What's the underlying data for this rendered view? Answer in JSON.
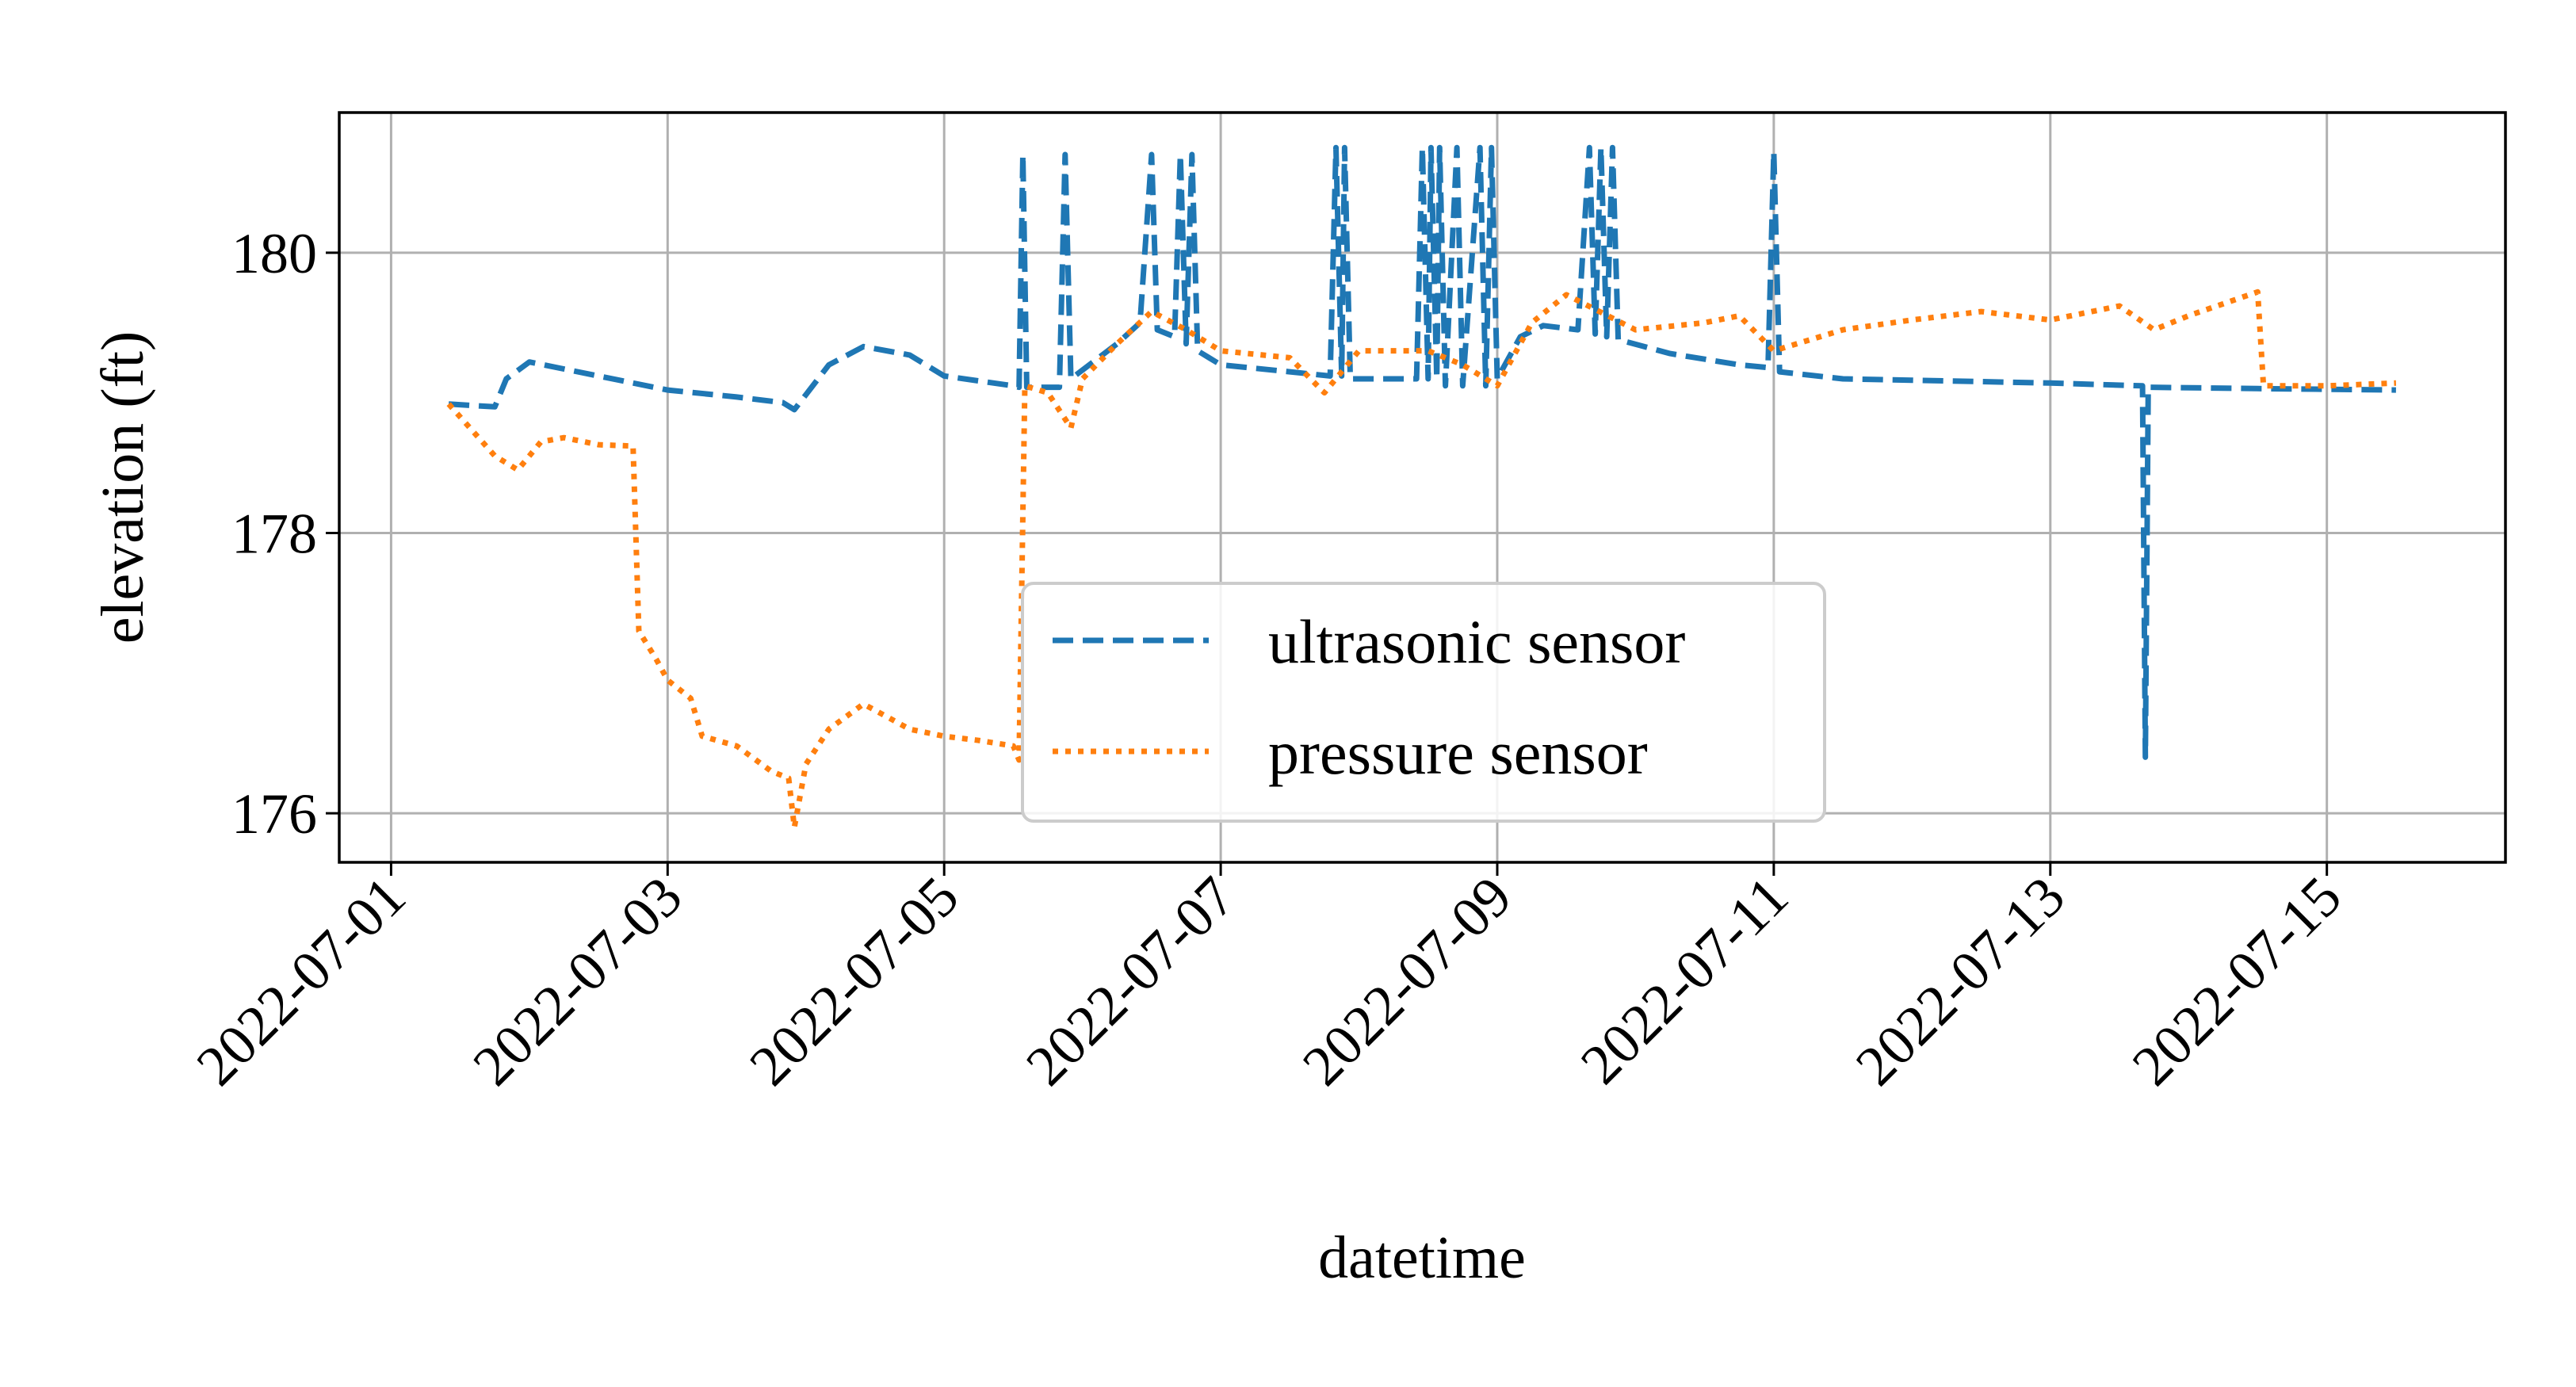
{
  "chart_data": {
    "type": "line",
    "title": "",
    "xlabel": "datetime",
    "ylabel": "elevation (ft)",
    "x_type": "date",
    "xlim": [
      "2022-06-30T15:00",
      "2022-07-16T07:00"
    ],
    "ylim": [
      175.65,
      181.0
    ],
    "x_ticks": [
      "2022-07-01",
      "2022-07-03",
      "2022-07-05",
      "2022-07-07",
      "2022-07-09",
      "2022-07-11",
      "2022-07-13",
      "2022-07-15"
    ],
    "y_ticks": [
      176,
      178,
      180
    ],
    "grid": true,
    "legend_position": "center",
    "series": [
      {
        "name": "ultrasonic sensor",
        "color": "#1f77b4",
        "dash": "dashed",
        "points": [
          [
            "2022-07-01T10:00",
            178.92
          ],
          [
            "2022-07-01T18:00",
            178.9
          ],
          [
            "2022-07-01T20:00",
            179.1
          ],
          [
            "2022-07-02T00:00",
            179.22
          ],
          [
            "2022-07-02T12:00",
            179.12
          ],
          [
            "2022-07-03T00:00",
            179.02
          ],
          [
            "2022-07-03T12:00",
            178.97
          ],
          [
            "2022-07-03T20:00",
            178.93
          ],
          [
            "2022-07-03T22:00",
            178.88
          ],
          [
            "2022-07-04T04:00",
            179.2
          ],
          [
            "2022-07-04T10:00",
            179.33
          ],
          [
            "2022-07-04T18:00",
            179.27
          ],
          [
            "2022-07-05T00:00",
            179.12
          ],
          [
            "2022-07-05T12:00",
            179.05
          ],
          [
            "2022-07-05T13:00",
            179.04
          ],
          [
            "2022-07-05T13:40",
            180.7
          ],
          [
            "2022-07-05T14:20",
            179.04
          ],
          [
            "2022-07-05T20:00",
            179.04
          ],
          [
            "2022-07-05T21:00",
            180.7
          ],
          [
            "2022-07-05T22:00",
            179.1
          ],
          [
            "2022-07-06T06:00",
            179.35
          ],
          [
            "2022-07-06T10:00",
            179.5
          ],
          [
            "2022-07-06T12:00",
            180.7
          ],
          [
            "2022-07-06T13:00",
            179.45
          ],
          [
            "2022-07-06T16:00",
            179.4
          ],
          [
            "2022-07-06T17:00",
            180.7
          ],
          [
            "2022-07-06T18:00",
            179.35
          ],
          [
            "2022-07-06T19:00",
            180.7
          ],
          [
            "2022-07-06T20:00",
            179.3
          ],
          [
            "2022-07-07T00:00",
            179.2
          ],
          [
            "2022-07-07T12:00",
            179.15
          ],
          [
            "2022-07-07T19:00",
            179.12
          ],
          [
            "2022-07-07T20:00",
            180.75
          ],
          [
            "2022-07-07T21:00",
            179.12
          ],
          [
            "2022-07-07T21:30",
            180.75
          ],
          [
            "2022-07-07T22:30",
            179.1
          ],
          [
            "2022-07-08T10:00",
            179.1
          ],
          [
            "2022-07-08T11:00",
            180.75
          ],
          [
            "2022-07-08T12:00",
            179.1
          ],
          [
            "2022-07-08T12:30",
            180.75
          ],
          [
            "2022-07-08T13:30",
            179.1
          ],
          [
            "2022-07-08T14:00",
            180.75
          ],
          [
            "2022-07-08T15:00",
            179.05
          ],
          [
            "2022-07-08T17:00",
            180.75
          ],
          [
            "2022-07-08T18:00",
            179.05
          ],
          [
            "2022-07-08T21:00",
            180.75
          ],
          [
            "2022-07-08T22:00",
            179.05
          ],
          [
            "2022-07-08T23:00",
            180.75
          ],
          [
            "2022-07-09T00:00",
            179.1
          ],
          [
            "2022-07-09T04:00",
            179.4
          ],
          [
            "2022-07-09T08:00",
            179.48
          ],
          [
            "2022-07-09T14:00",
            179.45
          ],
          [
            "2022-07-09T16:00",
            180.75
          ],
          [
            "2022-07-09T17:00",
            179.42
          ],
          [
            "2022-07-09T18:00",
            180.75
          ],
          [
            "2022-07-09T19:00",
            179.4
          ],
          [
            "2022-07-09T20:00",
            180.75
          ],
          [
            "2022-07-09T21:00",
            179.38
          ],
          [
            "2022-07-10T06:00",
            179.28
          ],
          [
            "2022-07-10T18:00",
            179.2
          ],
          [
            "2022-07-10T23:00",
            179.18
          ],
          [
            "2022-07-11T00:00",
            180.72
          ],
          [
            "2022-07-11T01:00",
            179.15
          ],
          [
            "2022-07-11T12:00",
            179.1
          ],
          [
            "2022-07-12T00:00",
            179.09
          ],
          [
            "2022-07-12T12:00",
            179.08
          ],
          [
            "2022-07-13T00:00",
            179.07
          ],
          [
            "2022-07-13T16:00",
            179.05
          ],
          [
            "2022-07-13T16:30",
            176.4
          ],
          [
            "2022-07-13T17:00",
            179.04
          ],
          [
            "2022-07-14T12:00",
            179.03
          ],
          [
            "2022-07-15T12:00",
            179.02
          ]
        ]
      },
      {
        "name": "pressure sensor",
        "color": "#ff7f0e",
        "dash": "dotted",
        "points": [
          [
            "2022-07-01T10:00",
            178.92
          ],
          [
            "2022-07-01T18:00",
            178.55
          ],
          [
            "2022-07-01T22:00",
            178.45
          ],
          [
            "2022-07-02T02:00",
            178.65
          ],
          [
            "2022-07-02T06:00",
            178.68
          ],
          [
            "2022-07-02T12:00",
            178.63
          ],
          [
            "2022-07-02T18:00",
            178.62
          ],
          [
            "2022-07-02T19:00",
            177.3
          ],
          [
            "2022-07-02T22:00",
            177.1
          ],
          [
            "2022-07-03T00:00",
            176.95
          ],
          [
            "2022-07-03T04:00",
            176.82
          ],
          [
            "2022-07-03T06:00",
            176.55
          ],
          [
            "2022-07-03T12:00",
            176.48
          ],
          [
            "2022-07-03T18:00",
            176.3
          ],
          [
            "2022-07-03T21:00",
            176.25
          ],
          [
            "2022-07-03T22:00",
            175.9
          ],
          [
            "2022-07-04T00:00",
            176.35
          ],
          [
            "2022-07-04T04:00",
            176.6
          ],
          [
            "2022-07-04T10:00",
            176.78
          ],
          [
            "2022-07-04T18:00",
            176.6
          ],
          [
            "2022-07-05T00:00",
            176.55
          ],
          [
            "2022-07-05T06:00",
            176.52
          ],
          [
            "2022-07-05T12:00",
            176.48
          ],
          [
            "2022-07-05T13:00",
            176.38
          ],
          [
            "2022-07-05T14:00",
            179.05
          ],
          [
            "2022-07-05T18:00",
            179.0
          ],
          [
            "2022-07-05T22:00",
            178.75
          ],
          [
            "2022-07-06T00:00",
            179.1
          ],
          [
            "2022-07-06T06:00",
            179.35
          ],
          [
            "2022-07-06T12:00",
            179.58
          ],
          [
            "2022-07-06T18:00",
            179.45
          ],
          [
            "2022-07-07T00:00",
            179.3
          ],
          [
            "2022-07-07T12:00",
            179.25
          ],
          [
            "2022-07-07T18:00",
            179.0
          ],
          [
            "2022-07-08T00:00",
            179.3
          ],
          [
            "2022-07-08T12:00",
            179.3
          ],
          [
            "2022-07-08T18:00",
            179.2
          ],
          [
            "2022-07-09T00:00",
            179.05
          ],
          [
            "2022-07-09T06:00",
            179.5
          ],
          [
            "2022-07-09T12:00",
            179.7
          ],
          [
            "2022-07-10T00:00",
            179.45
          ],
          [
            "2022-07-10T12:00",
            179.5
          ],
          [
            "2022-07-10T18:00",
            179.55
          ],
          [
            "2022-07-11T00:00",
            179.3
          ],
          [
            "2022-07-11T12:00",
            179.45
          ],
          [
            "2022-07-12T00:00",
            179.52
          ],
          [
            "2022-07-12T12:00",
            179.58
          ],
          [
            "2022-07-13T00:00",
            179.52
          ],
          [
            "2022-07-13T12:00",
            179.62
          ],
          [
            "2022-07-13T18:00",
            179.45
          ],
          [
            "2022-07-14T00:00",
            179.55
          ],
          [
            "2022-07-14T12:00",
            179.72
          ],
          [
            "2022-07-14T13:00",
            179.05
          ],
          [
            "2022-07-15T00:00",
            179.05
          ],
          [
            "2022-07-15T12:00",
            179.07
          ]
        ]
      }
    ]
  }
}
